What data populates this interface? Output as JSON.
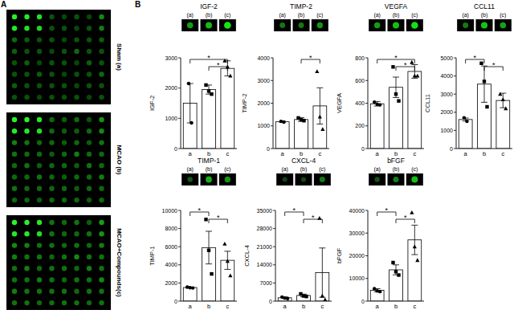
{
  "panel_labels": [
    "A",
    "B"
  ],
  "blot_panels": [
    {
      "label": "Sham (a)",
      "spots": [
        [
          0.95,
          0.9,
          0.85,
          0.2,
          0.15,
          0.2,
          0.15,
          0.45
        ],
        [
          0.9,
          0.85,
          0.8,
          0.2,
          0.2,
          0.15,
          0.2,
          0.4
        ],
        [
          0.3,
          0.25,
          0.2,
          0.2,
          0.15,
          0.2,
          0.2,
          0.25
        ],
        [
          0.25,
          0.2,
          0.2,
          0.15,
          0.2,
          0.3,
          0.2,
          0.2
        ],
        [
          0.2,
          0.25,
          0.15,
          0.2,
          0.2,
          0.15,
          0.25,
          0.2
        ],
        [
          0.2,
          0.2,
          0.25,
          0.2,
          0.15,
          0.2,
          0.2,
          0.3
        ],
        [
          0.25,
          0.2,
          0.2,
          0.2,
          0.2,
          0.15,
          0.2,
          0.2
        ],
        [
          0.2,
          0.2,
          0.15,
          0.2,
          0.2,
          0.2,
          0.15,
          0.2
        ]
      ]
    },
    {
      "label": "MCAO (b)",
      "spots": [
        [
          0.95,
          0.95,
          0.9,
          0.3,
          0.25,
          0.3,
          0.2,
          0.5
        ],
        [
          0.9,
          0.9,
          0.85,
          0.3,
          0.25,
          0.25,
          0.3,
          0.45
        ],
        [
          0.4,
          0.35,
          0.3,
          0.3,
          0.25,
          0.3,
          0.25,
          0.35
        ],
        [
          0.35,
          0.3,
          0.3,
          0.25,
          0.3,
          0.4,
          0.3,
          0.3
        ],
        [
          0.3,
          0.35,
          0.25,
          0.3,
          0.3,
          0.25,
          0.35,
          0.3
        ],
        [
          0.3,
          0.3,
          0.35,
          0.3,
          0.25,
          0.3,
          0.3,
          0.4
        ],
        [
          0.35,
          0.3,
          0.3,
          0.3,
          0.3,
          0.25,
          0.3,
          0.3
        ],
        [
          0.3,
          0.3,
          0.25,
          0.3,
          0.3,
          0.3,
          0.25,
          0.3
        ]
      ]
    },
    {
      "label": "MCAO+Compounds(c)",
      "spots": [
        [
          0.95,
          0.95,
          0.9,
          0.35,
          0.3,
          0.35,
          0.25,
          0.55
        ],
        [
          0.9,
          0.9,
          0.85,
          0.35,
          0.3,
          0.3,
          0.35,
          0.5
        ],
        [
          0.45,
          0.4,
          0.35,
          0.35,
          0.3,
          0.35,
          0.3,
          0.4
        ],
        [
          0.4,
          0.35,
          0.35,
          0.3,
          0.35,
          0.45,
          0.35,
          0.35
        ],
        [
          0.35,
          0.4,
          0.3,
          0.35,
          0.35,
          0.3,
          0.4,
          0.35
        ],
        [
          0.35,
          0.35,
          0.4,
          0.35,
          0.3,
          0.35,
          0.35,
          0.45
        ],
        [
          0.4,
          0.35,
          0.35,
          0.35,
          0.35,
          0.3,
          0.35,
          0.35
        ],
        [
          0.35,
          0.35,
          0.3,
          0.35,
          0.35,
          0.35,
          0.3,
          0.35
        ]
      ]
    }
  ],
  "chart_data": [
    {
      "type": "bar",
      "title": "IGF-2",
      "y_label": "IGF-2",
      "blot_labels": [
        "(a)",
        "(b)",
        "(c)"
      ],
      "categories": [
        "a",
        "b",
        "c"
      ],
      "values": [
        1500,
        1950,
        2650
      ],
      "errors": [
        650,
        150,
        250
      ],
      "points": [
        [
          2150,
          850
        ],
        [
          2100,
          1900,
          1800
        ],
        [
          2900,
          2700,
          2400
        ]
      ],
      "markers": [
        "circle",
        "square",
        "triangle"
      ],
      "color": "#ffffff",
      "ylim": [
        0,
        3000
      ],
      "yticks": [
        0,
        1000,
        2000,
        3000
      ],
      "significance": [
        {
          "from": 0,
          "to": 2,
          "label": "*"
        },
        {
          "from": 1,
          "to": 2,
          "label": "*"
        }
      ]
    },
    {
      "type": "bar",
      "title": "TIMP-2",
      "y_label": "TIMP-2",
      "blot_labels": [
        "(a)",
        "(b)",
        "(c)"
      ],
      "categories": [
        "a",
        "b",
        "c"
      ],
      "values": [
        1180,
        1280,
        1880
      ],
      "errors": [
        20,
        80,
        800
      ],
      "points": [
        [
          1200,
          1170
        ],
        [
          1350,
          1270,
          1230
        ],
        [
          3400,
          1400,
          850
        ]
      ],
      "markers": [
        "circle",
        "square",
        "triangle"
      ],
      "color": "#ffffff",
      "ylim": [
        0,
        4000
      ],
      "yticks": [
        0,
        1000,
        2000,
        3000,
        4000
      ],
      "significance": [
        {
          "from": 1,
          "to": 2,
          "label": "*"
        }
      ]
    },
    {
      "type": "bar",
      "title": "VEGFA",
      "y_label": "VEGFA",
      "blot_labels": [
        "(a)",
        "(b)",
        "(c)"
      ],
      "categories": [
        "a",
        "b",
        "c"
      ],
      "values": [
        395,
        540,
        680
      ],
      "errors": [
        20,
        90,
        60
      ],
      "points": [
        [
          410,
          390,
          385
        ],
        [
          720,
          480,
          420
        ],
        [
          760,
          640,
          640
        ]
      ],
      "markers": [
        "circle",
        "square",
        "triangle"
      ],
      "color": "#ffffff",
      "ylim": [
        0,
        800
      ],
      "yticks": [
        0,
        200,
        400,
        600,
        800
      ],
      "significance": [
        {
          "from": 0,
          "to": 2,
          "label": "*"
        },
        {
          "from": 1,
          "to": 2,
          "label": "*"
        }
      ]
    },
    {
      "type": "bar",
      "title": "CCL11",
      "y_label": "CCL11",
      "blot_labels": [
        "(a)",
        "(b)",
        "(c)"
      ],
      "categories": [
        "a",
        "b",
        "c"
      ],
      "values": [
        1600,
        3550,
        2650
      ],
      "errors": [
        80,
        1000,
        400
      ],
      "points": [
        [
          1700,
          1500
        ],
        [
          4700,
          3700,
          2300
        ],
        [
          3000,
          2700,
          2200
        ]
      ],
      "markers": [
        "circle",
        "square",
        "triangle"
      ],
      "color": "#ffffff",
      "ylim": [
        0,
        5000
      ],
      "yticks": [
        0,
        1000,
        2000,
        3000,
        4000,
        5000
      ],
      "significance": [
        {
          "from": 0,
          "to": 1,
          "label": "*"
        },
        {
          "from": 1,
          "to": 2,
          "label": "*"
        }
      ]
    },
    {
      "type": "bar",
      "title": "TIMP-1",
      "y_label": "TIMP-1",
      "blot_labels": [
        "(a)",
        "(b)",
        "(c)"
      ],
      "categories": [
        "a",
        "b",
        "c"
      ],
      "values": [
        1500,
        5900,
        4500
      ],
      "errors": [
        50,
        1800,
        1000
      ],
      "points": [
        [
          1550,
          1480,
          1450
        ],
        [
          9000,
          5600,
          3000
        ],
        [
          6300,
          4400,
          2800
        ]
      ],
      "markers": [
        "circle",
        "square",
        "triangle"
      ],
      "color": "#ffffff",
      "ylim": [
        0,
        10000
      ],
      "yticks": [
        0,
        2000,
        4000,
        6000,
        8000,
        10000
      ],
      "significance": [
        {
          "from": 0,
          "to": 1,
          "label": "*"
        },
        {
          "from": 1,
          "to": 2,
          "label": "*"
        }
      ]
    },
    {
      "type": "bar",
      "title": "CXCL-4",
      "y_label": "CXCL-4",
      "blot_labels": [
        "(a)",
        "(b)",
        "(c)"
      ],
      "categories": [
        "a",
        "b",
        "c"
      ],
      "values": [
        1300,
        2200,
        11000
      ],
      "errors": [
        300,
        500,
        9500
      ],
      "points": [
        [
          1600,
          1200,
          1000
        ],
        [
          2800,
          2000,
          1800
        ],
        [
          32000,
          2000,
          500
        ]
      ],
      "markers": [
        "circle",
        "square",
        "triangle"
      ],
      "color": "#ffffff",
      "ylim": [
        0,
        35000
      ],
      "yticks": [
        0,
        7000,
        14000,
        21000,
        28000,
        35000
      ],
      "significance": [
        {
          "from": 0,
          "to": 1,
          "label": "*"
        },
        {
          "from": 1,
          "to": 2,
          "label": "*"
        }
      ]
    },
    {
      "type": "bar",
      "title": "bFGF",
      "y_label": "bFGF",
      "blot_labels": [
        "(a)",
        "(b)",
        "(c)"
      ],
      "categories": [
        "a",
        "b",
        "c"
      ],
      "values": [
        4800,
        13800,
        27000
      ],
      "errors": [
        700,
        2200,
        6500
      ],
      "points": [
        [
          5500,
          4500,
          4200
        ],
        [
          17000,
          13000,
          11500
        ],
        [
          39000,
          24000,
          18000
        ]
      ],
      "markers": [
        "circle",
        "square",
        "triangle"
      ],
      "color": "#ffffff",
      "ylim": [
        0,
        40000
      ],
      "yticks": [
        0,
        10000,
        20000,
        30000,
        40000
      ],
      "significance": [
        {
          "from": 0,
          "to": 1,
          "label": "*"
        },
        {
          "from": 1,
          "to": 2,
          "label": "*"
        }
      ]
    }
  ]
}
